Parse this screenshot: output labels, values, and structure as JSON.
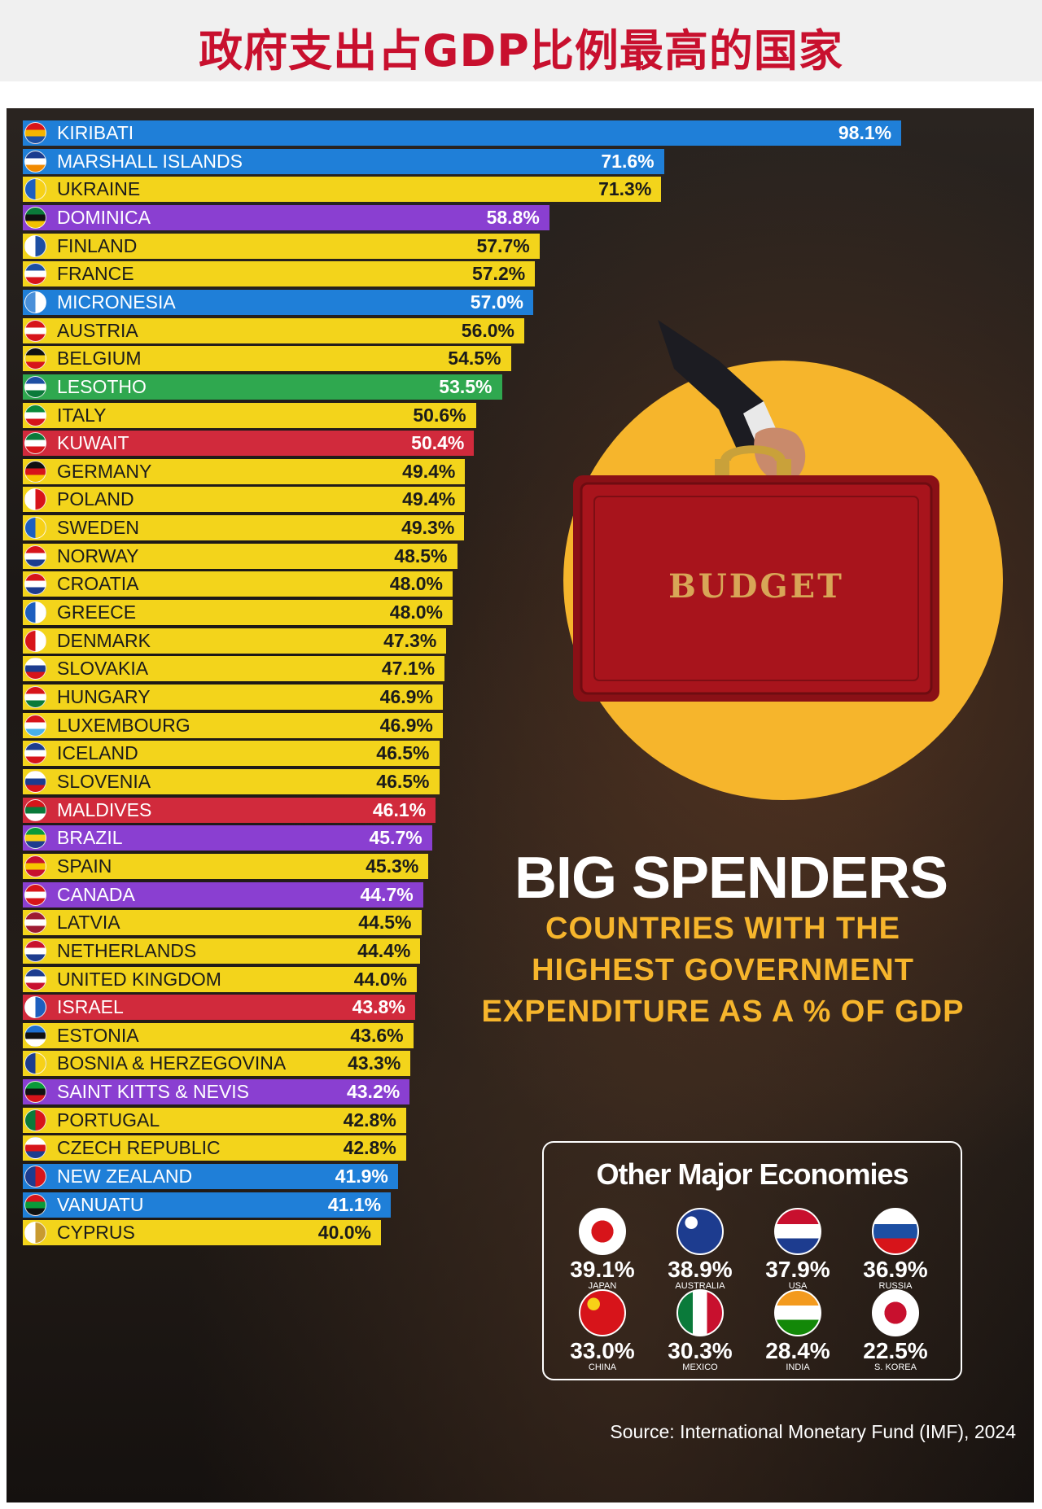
{
  "header": {
    "title": "政府支出占GDP比例最高的国家"
  },
  "colors": {
    "blue": "#1f7fd8",
    "yellow": "#f3d41b",
    "purple": "#8a3fd1",
    "green": "#2fa84f",
    "red": "#d12a3c",
    "accent": "#f6b52c"
  },
  "chart_data": {
    "type": "bar",
    "orientation": "horizontal",
    "title": "BIG SPENDERS",
    "subtitle": [
      "COUNTRIES WITH THE",
      "HIGHEST GOVERNMENT",
      "EXPENDITURE AS A % OF GDP"
    ],
    "unit": "%",
    "series": [
      {
        "values": [
          98.1,
          71.6,
          71.3,
          58.8,
          57.7,
          57.2,
          57.0,
          56.0,
          54.5,
          53.5,
          50.6,
          50.4,
          49.4,
          49.4,
          49.3,
          48.5,
          48.0,
          48.0,
          47.3,
          47.1,
          46.9,
          46.9,
          46.5,
          46.5,
          46.1,
          45.7,
          45.3,
          44.7,
          44.5,
          44.4,
          44.0,
          43.8,
          43.6,
          43.3,
          43.2,
          42.8,
          42.8,
          41.9,
          41.1,
          40.0
        ]
      }
    ],
    "categories": [
      "KIRIBATI",
      "MARSHALL ISLANDS",
      "UKRAINE",
      "DOMINICA",
      "FINLAND",
      "FRANCE",
      "MICRONESIA",
      "AUSTRIA",
      "BELGIUM",
      "LESOTHO",
      "ITALY",
      "KUWAIT",
      "GERMANY",
      "POLAND",
      "SWEDEN",
      "NORWAY",
      "CROATIA",
      "GREECE",
      "DENMARK",
      "SLOVAKIA",
      "HUNGARY",
      "LUXEMBOURG",
      "ICELAND",
      "SLOVENIA",
      "MALDIVES",
      "BRAZIL",
      "SPAIN",
      "CANADA",
      "LATVIA",
      "NETHERLANDS",
      "UNITED KINGDOM",
      "ISRAEL",
      "ESTONIA",
      "BOSNIA & HERZEGOVINA",
      "SAINT KITTS & NEVIS",
      "PORTUGAL",
      "CZECH REPUBLIC",
      "NEW ZEALAND",
      "VANUATU",
      "CYPRUS"
    ],
    "labels": [
      "98.1%",
      "71.6%",
      "71.3%",
      "58.8%",
      "57.7%",
      "57.2%",
      "57.0%",
      "56.0%",
      "54.5%",
      "53.5%",
      "50.6%",
      "50.4%",
      "49.4%",
      "49.4%",
      "49.3%",
      "48.5%",
      "48.0%",
      "48.0%",
      "47.3%",
      "47.1%",
      "46.9%",
      "46.9%",
      "46.5%",
      "46.5%",
      "46.1%",
      "45.7%",
      "45.3%",
      "44.7%",
      "44.5%",
      "44.4%",
      "44.0%",
      "43.8%",
      "43.6%",
      "43.3%",
      "43.2%",
      "42.8%",
      "42.8%",
      "41.9%",
      "41.1%",
      "40.0%"
    ],
    "bar_colors": [
      "blue",
      "blue",
      "yellow",
      "purple",
      "yellow",
      "yellow",
      "blue",
      "yellow",
      "yellow",
      "green",
      "yellow",
      "red",
      "yellow",
      "yellow",
      "yellow",
      "yellow",
      "yellow",
      "yellow",
      "yellow",
      "yellow",
      "yellow",
      "yellow",
      "yellow",
      "yellow",
      "red",
      "purple",
      "yellow",
      "purple",
      "yellow",
      "yellow",
      "yellow",
      "red",
      "yellow",
      "yellow",
      "purple",
      "yellow",
      "yellow",
      "blue",
      "blue",
      "yellow"
    ],
    "flag_colors": [
      [
        "#d7141a",
        "#f4b400",
        "#1d4fa3"
      ],
      [
        "#1a3c8f",
        "#ffffff",
        "#f18a00"
      ],
      [
        "#1d5fbf",
        "#f7d117"
      ],
      [
        "#0a7a3a",
        "#111111",
        "#f2c200"
      ],
      [
        "#ffffff",
        "#1d4fa3"
      ],
      [
        "#1d4fa3",
        "#ffffff",
        "#d7141a"
      ],
      [
        "#4a90d9",
        "#ffffff"
      ],
      [
        "#d7141a",
        "#ffffff",
        "#d7141a"
      ],
      [
        "#111111",
        "#f7d117",
        "#d7141a"
      ],
      [
        "#1d4fa3",
        "#ffffff",
        "#0a7a3a"
      ],
      [
        "#0a8a3a",
        "#ffffff",
        "#d7141a"
      ],
      [
        "#0a7a3a",
        "#ffffff",
        "#d7141a"
      ],
      [
        "#111111",
        "#d7141a",
        "#f7c600"
      ],
      [
        "#ffffff",
        "#d7141a"
      ],
      [
        "#1d5fbf",
        "#f7d117"
      ],
      [
        "#d7141a",
        "#ffffff",
        "#1d3c8f"
      ],
      [
        "#d7141a",
        "#ffffff",
        "#1d3c8f"
      ],
      [
        "#1d5fbf",
        "#ffffff"
      ],
      [
        "#d7141a",
        "#ffffff"
      ],
      [
        "#ffffff",
        "#1d3c8f",
        "#d7141a"
      ],
      [
        "#d7141a",
        "#ffffff",
        "#0a7a3a"
      ],
      [
        "#d7141a",
        "#ffffff",
        "#4ab0e8"
      ],
      [
        "#1d3c8f",
        "#ffffff",
        "#d7141a"
      ],
      [
        "#ffffff",
        "#1d3c8f",
        "#d7141a"
      ],
      [
        "#d7141a",
        "#0a7a3a",
        "#ffffff"
      ],
      [
        "#0a9a3a",
        "#f7d117",
        "#1d3c8f"
      ],
      [
        "#c8102e",
        "#f7c600",
        "#c8102e"
      ],
      [
        "#d7141a",
        "#ffffff",
        "#d7141a"
      ],
      [
        "#9e1b32",
        "#ffffff",
        "#9e1b32"
      ],
      [
        "#c8102e",
        "#ffffff",
        "#1d3c8f"
      ],
      [
        "#1d3c8f",
        "#ffffff",
        "#c8102e"
      ],
      [
        "#ffffff",
        "#1d5fbf"
      ],
      [
        "#1d6fd0",
        "#111111",
        "#ffffff"
      ],
      [
        "#1d3c8f",
        "#f7d117"
      ],
      [
        "#0a9a3a",
        "#111111",
        "#d7141a"
      ],
      [
        "#0a7a3a",
        "#d7141a"
      ],
      [
        "#ffffff",
        "#d7141a",
        "#1d3c8f"
      ],
      [
        "#1d3c8f",
        "#d7141a"
      ],
      [
        "#d7141a",
        "#0a9a3a",
        "#111111"
      ],
      [
        "#ffffff",
        "#c89a30"
      ]
    ],
    "axis": {
      "x_range": [
        0,
        100
      ]
    }
  },
  "infographic": {
    "briefcase_label": "BUDGET",
    "other_title": "Other Major Economies",
    "others": [
      {
        "value": "39.1%",
        "name": "JAPAN",
        "colors": [
          "#ffffff",
          "#d7141a"
        ]
      },
      {
        "value": "38.9%",
        "name": "AUSTRALIA",
        "colors": [
          "#1d3c8f",
          "#ffffff"
        ]
      },
      {
        "value": "37.9%",
        "name": "USA",
        "colors": [
          "#c8102e",
          "#ffffff",
          "#1d3c8f"
        ]
      },
      {
        "value": "36.9%",
        "name": "RUSSIA",
        "colors": [
          "#ffffff",
          "#1d4fa3",
          "#d7141a"
        ]
      },
      {
        "value": "33.0%",
        "name": "CHINA",
        "colors": [
          "#d7141a",
          "#f7d117"
        ]
      },
      {
        "value": "30.3%",
        "name": "MEXICO",
        "colors": [
          "#0a7a3a",
          "#ffffff",
          "#c8102e"
        ]
      },
      {
        "value": "28.4%",
        "name": "INDIA",
        "colors": [
          "#f39a1e",
          "#ffffff",
          "#138808"
        ]
      },
      {
        "value": "22.5%",
        "name": "S. KOREA",
        "colors": [
          "#ffffff",
          "#c8102e",
          "#1d3c8f"
        ]
      }
    ],
    "source": "Source: International Monetary Fund (IMF), 2024"
  }
}
